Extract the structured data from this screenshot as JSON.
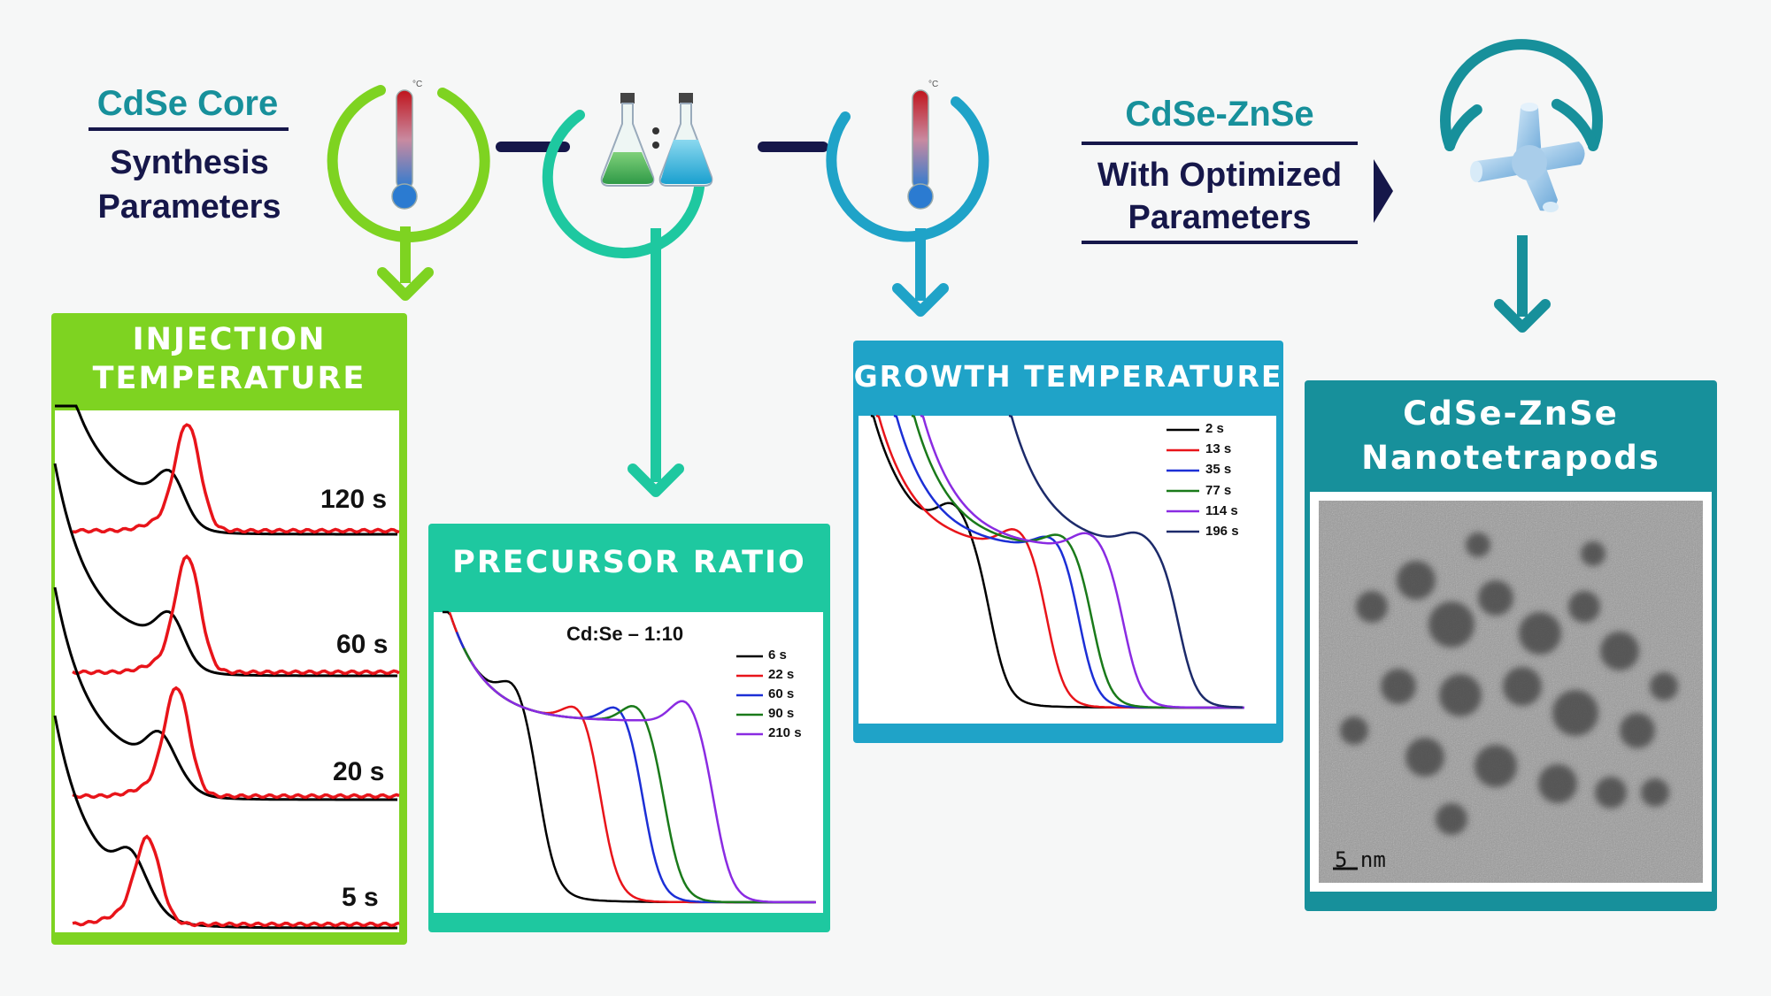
{
  "header": {
    "core_title": "CdSe Core",
    "core_subtitle_line1": "Synthesis",
    "core_subtitle_line2": "Parameters",
    "shell_title": "CdSe-ZnSe",
    "shell_subtitle_line1": "With Optimized",
    "shell_subtitle_line2": "Parameters"
  },
  "icons": [
    "thermometer-icon",
    "flask-ratio-icon",
    "thermometer-icon",
    "tetrapod-icon"
  ],
  "colors": {
    "green": "#7ed321",
    "teal": "#1ec8a0",
    "blue": "#1fa3c8",
    "dark_teal": "#17909b",
    "navy": "#16174a"
  },
  "panels": {
    "injection": {
      "title_line1": "INJECTION",
      "title_line2": "TEMPERATURE",
      "labels": [
        "120 s",
        "60 s",
        "20 s",
        "5 s"
      ]
    },
    "precursor": {
      "title": "PRECURSOR RATIO",
      "annotation": "Cd:Se – 1:10",
      "legend": [
        "6 s",
        "22 s",
        "60 s",
        "90 s",
        "210 s"
      ]
    },
    "growth": {
      "title": "GROWTH TEMPERATURE",
      "legend": [
        "2 s",
        "13 s",
        "35 s",
        "77 s",
        "114 s",
        "196 s"
      ]
    },
    "product": {
      "title_line1": "CdSe-ZnSe",
      "title_line2": "Nanotetrapods",
      "scale_bar": "5 nm"
    }
  },
  "series_colors": {
    "precursor": [
      "#000000",
      "#e8141a",
      "#1c2fd6",
      "#1a7a1a",
      "#8a2be2"
    ],
    "growth": [
      "#000000",
      "#e8141a",
      "#1c2fd6",
      "#1a7a1a",
      "#8a2be2",
      "#1c2a6a"
    ]
  }
}
